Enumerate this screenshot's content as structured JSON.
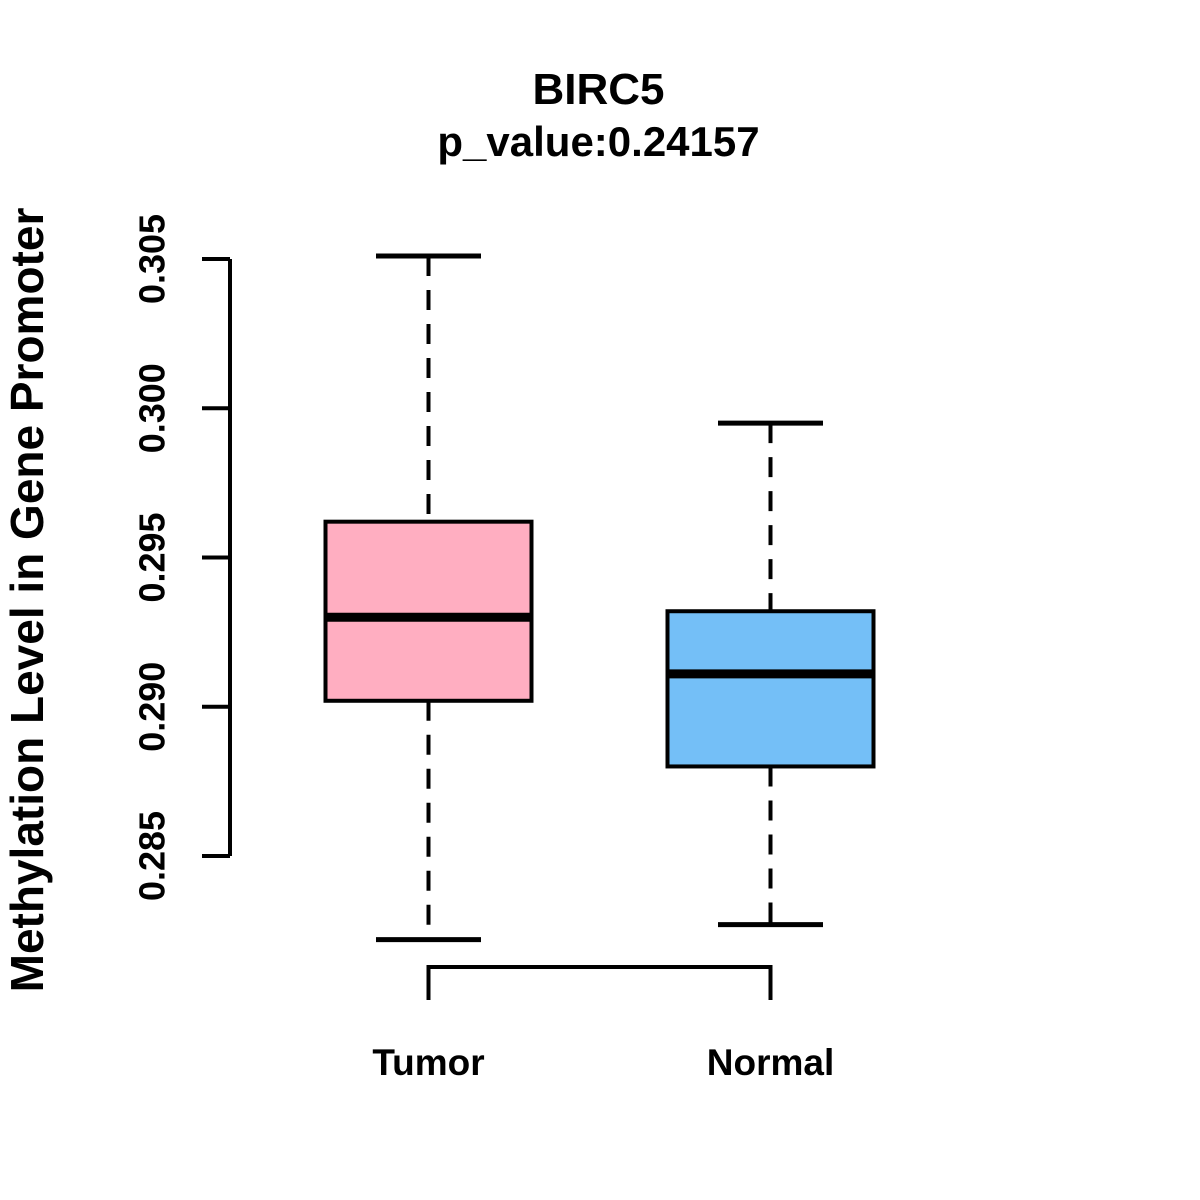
{
  "title": "BIRC5",
  "subtitle": "p_value:0.24157",
  "chart_data": {
    "type": "boxplot",
    "title": "BIRC5",
    "subtitle": "p_value:0.24157",
    "ylabel": "Methylation Level in Gene Promoter",
    "ylim": [
      0.285,
      0.305
    ],
    "yticks": [
      "0.285",
      "0.290",
      "0.295",
      "0.300",
      "0.305"
    ],
    "grid": false,
    "legend": "none",
    "categories": [
      "Tumor",
      "Normal"
    ],
    "series": [
      {
        "name": "Tumor",
        "fill_color": "#FFAEC1",
        "lower_whisker": 0.2822,
        "q1": 0.2902,
        "median": 0.293,
        "q3": 0.2962,
        "upper_whisker": 0.3051
      },
      {
        "name": "Normal",
        "fill_color": "#74BFF7",
        "lower_whisker": 0.2827,
        "q1": 0.288,
        "median": 0.2911,
        "q3": 0.2932,
        "upper_whisker": 0.2995
      }
    ],
    "line_color": "#000000",
    "background_color": "#FFFFFF"
  }
}
